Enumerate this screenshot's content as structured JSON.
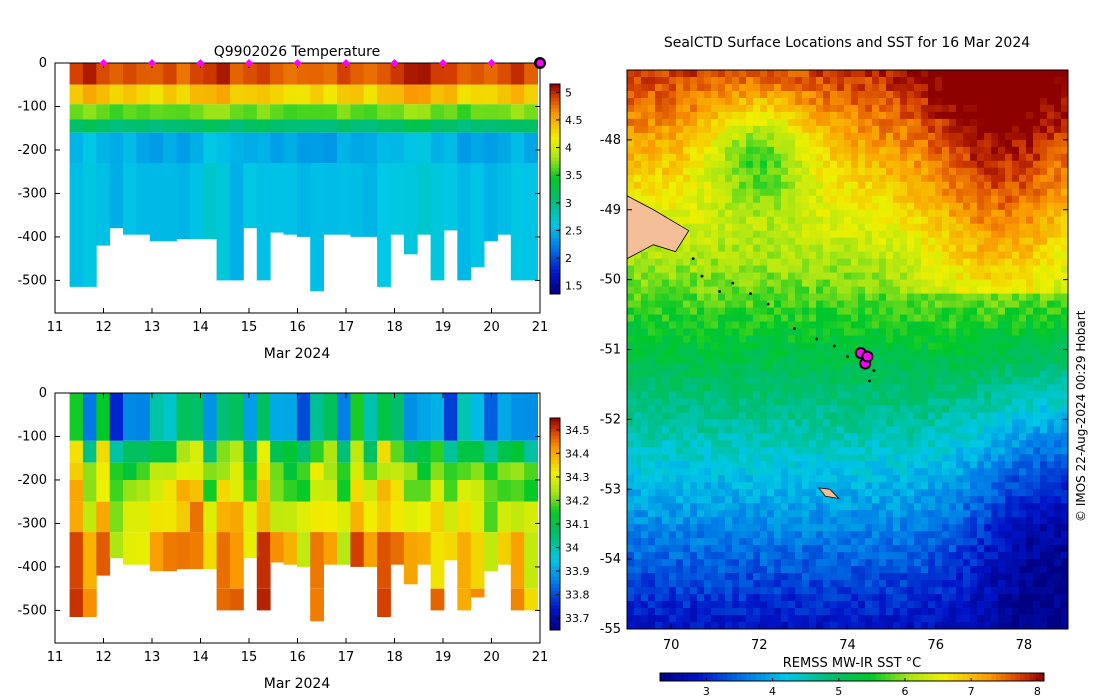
{
  "chart_data": [
    {
      "type": "heatmap",
      "title": "Q9902026  Temperature",
      "xlabel": "Mar 2024",
      "ylabel": "",
      "xlim": [
        11,
        21
      ],
      "ylim": [
        -575,
        0
      ],
      "x_ticks": [
        11,
        12,
        13,
        14,
        15,
        16,
        17,
        18,
        19,
        20,
        21
      ],
      "y_ticks": [
        0,
        -100,
        -200,
        -300,
        -400,
        -500
      ],
      "colorbar_range": [
        1.35,
        5.15
      ],
      "colorbar_ticks": [
        5,
        4.5,
        4,
        3.5,
        3,
        2.5,
        2,
        1.5
      ],
      "surface_markers_days": [
        12,
        13,
        14,
        15,
        16,
        17,
        18,
        19,
        20
      ],
      "latest_marker_day": 21,
      "profile_bottom_depths": [
        -515,
        -515,
        -420,
        -380,
        -395,
        -395,
        -410,
        -410,
        -405,
        -405,
        -405,
        -500,
        -500,
        -380,
        -500,
        -390,
        -395,
        -400,
        -525,
        -395,
        -395,
        -400,
        -400,
        -515,
        -395,
        -440,
        -395,
        -500,
        -385,
        -500,
        -470,
        -410,
        -395,
        -500,
        -500
      ],
      "layers": [
        {
          "top": 0,
          "bottom": -50,
          "value": 4.9
        },
        {
          "top": -50,
          "bottom": -95,
          "value": 4.4
        },
        {
          "top": -95,
          "bottom": -130,
          "value": 3.7
        },
        {
          "top": -130,
          "bottom": -160,
          "value": 3.1
        },
        {
          "top": -160,
          "bottom": -230,
          "value": 2.5
        },
        {
          "top": -230,
          "bottom": -600,
          "value": 2.6
        }
      ]
    },
    {
      "type": "heatmap",
      "title": "",
      "xlabel": "Mar 2024",
      "ylabel": "",
      "xlim": [
        11,
        21
      ],
      "ylim": [
        -575,
        0
      ],
      "x_ticks": [
        11,
        12,
        13,
        14,
        15,
        16,
        17,
        18,
        19,
        20,
        21
      ],
      "y_ticks": [
        0,
        -100,
        -200,
        -300,
        -400,
        -500
      ],
      "colorbar_range": [
        33.65,
        34.55
      ],
      "colorbar_ticks": [
        34.5,
        34.4,
        34.3,
        34.2,
        34.1,
        34,
        33.9,
        33.8,
        33.7
      ],
      "layers": [
        {
          "top": 0,
          "bottom": -110,
          "value": 33.98
        },
        {
          "top": -110,
          "bottom": -160,
          "value": 34.15
        },
        {
          "top": -160,
          "bottom": -200,
          "value": 34.22
        },
        {
          "top": -200,
          "bottom": -250,
          "value": 34.27
        },
        {
          "top": -250,
          "bottom": -320,
          "value": 34.33
        },
        {
          "top": -320,
          "bottom": -450,
          "value": 34.4
        },
        {
          "top": -450,
          "bottom": -600,
          "value": 34.44
        }
      ]
    },
    {
      "type": "heatmap",
      "title": "SealCTD Surface Locations and SST for 16 Mar 2024",
      "xlabel": "REMSS MW-IR SST °C",
      "ylabel": "",
      "xlim": [
        69.0,
        79.0
      ],
      "ylim": [
        -55.0,
        -47.0
      ],
      "x_ticks": [
        70,
        72,
        74,
        76,
        78
      ],
      "y_ticks": [
        -48,
        -49,
        -50,
        -51,
        -52,
        -53,
        -54,
        -55
      ],
      "colorbar_range": [
        2.3,
        8.1
      ],
      "colorbar_ticks": [
        3,
        4,
        5,
        6,
        7,
        8
      ],
      "track": [
        [
          70.5,
          -49.7
        ],
        [
          70.7,
          -49.95
        ],
        [
          71.1,
          -50.17
        ],
        [
          71.4,
          -50.05
        ],
        [
          71.8,
          -50.2
        ],
        [
          72.2,
          -50.35
        ],
        [
          72.8,
          -50.7
        ],
        [
          73.3,
          -50.85
        ],
        [
          73.7,
          -50.95
        ],
        [
          74.0,
          -51.1
        ],
        [
          74.3,
          -51.1
        ],
        [
          74.6,
          -51.3
        ],
        [
          74.5,
          -51.45
        ]
      ],
      "seal_positions": [
        [
          74.3,
          -51.05
        ],
        [
          74.4,
          -51.2
        ],
        [
          74.45,
          -51.1
        ]
      ]
    }
  ],
  "credit": "© IMOS 22-Aug-2024 00:29 Hobart"
}
